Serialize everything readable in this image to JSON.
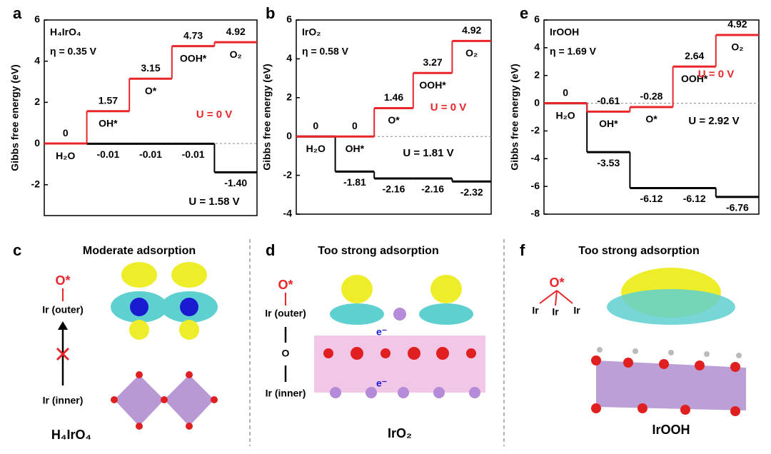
{
  "chart_data": [
    {
      "type": "step",
      "panel_label": "a",
      "title": "H₄IrO₄",
      "annotation": "η = 0.35 V",
      "y_label": "Gibbs free energy (eV)",
      "categories": [
        "H₂O",
        "OH*",
        "O*",
        "OOH*",
        "O₂"
      ],
      "series": [
        {
          "name": "U = 0 V",
          "color": "#e8262a",
          "values": [
            0,
            1.57,
            3.15,
            4.73,
            4.92
          ]
        },
        {
          "name": "U = 1.58 V",
          "color": "#000000",
          "values": [
            0,
            -0.01,
            -0.01,
            -0.01,
            -1.4
          ],
          "value_labels": [
            "0",
            "-0.01",
            "-0.01",
            "-0.01",
            "-1.40"
          ]
        }
      ],
      "ylim": [
        -3.5,
        6
      ],
      "yticks": [
        -2,
        0,
        2,
        4,
        6
      ]
    },
    {
      "type": "step",
      "panel_label": "b",
      "title": "IrO₂",
      "annotation": "η = 0.58 V",
      "y_label": "Gibbs free energy (eV)",
      "categories": [
        "H₂O",
        "OH*",
        "O*",
        "OOH*",
        "O₂"
      ],
      "series": [
        {
          "name": "U = 0 V",
          "color": "#e8262a",
          "values": [
            0,
            0,
            1.46,
            3.27,
            4.92
          ]
        },
        {
          "name": "U = 1.81 V",
          "color": "#000000",
          "values": [
            0,
            -1.81,
            -2.16,
            -2.16,
            -2.32
          ]
        }
      ],
      "ylim": [
        -4,
        6
      ],
      "yticks": [
        -4,
        -2,
        0,
        2,
        4,
        6
      ]
    },
    {
      "type": "step",
      "panel_label": "e",
      "title": "IrOOH",
      "annotation": "η = 1.69 V",
      "y_label": "Gibbs free energy (eV)",
      "categories": [
        "H₂O",
        "OH*",
        "O*",
        "OOH*",
        "O₂"
      ],
      "series": [
        {
          "name": "U = 0 V",
          "color": "#e8262a",
          "values": [
            0,
            -0.61,
            -0.28,
            2.64,
            4.92
          ]
        },
        {
          "name": "U = 2.92 V",
          "color": "#000000",
          "values": [
            0,
            -3.53,
            -6.12,
            -6.12,
            -6.76
          ]
        }
      ],
      "ylim": [
        -8,
        6
      ],
      "yticks": [
        -8,
        -6,
        -4,
        -2,
        0,
        2,
        4,
        6
      ]
    }
  ],
  "structures": [
    {
      "panel_label": "c",
      "title": "Moderate adsorption",
      "adsorbate": "O*",
      "outer": "Ir (outer)",
      "inner": "Ir (inner)",
      "name": "H₄IrO₄"
    },
    {
      "panel_label": "d",
      "title": "Too strong adsorption",
      "adsorbate": "O*",
      "outer": "Ir (outer)",
      "bridge": "O",
      "inner": "Ir (inner)",
      "electron": "e⁻",
      "name": "IrO₂"
    },
    {
      "panel_label": "f",
      "title": "Too strong adsorption",
      "adsorbate": "O*",
      "site": "Ir",
      "name": "IrOOH"
    }
  ]
}
